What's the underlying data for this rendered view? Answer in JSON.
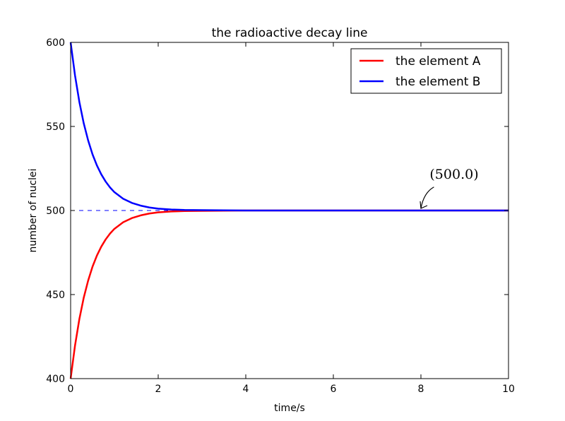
{
  "chart_data": {
    "type": "line",
    "title": "the radioactive decay line",
    "xlabel": "time/s",
    "ylabel": "number of nuclei",
    "xlim": [
      0,
      10
    ],
    "ylim": [
      400,
      600
    ],
    "xticks": [
      0,
      2,
      4,
      6,
      8,
      10
    ],
    "xtick_labels": [
      "0",
      "2",
      "4",
      "6",
      "8",
      "10"
    ],
    "yticks": [
      400,
      450,
      500,
      550,
      600
    ],
    "ytick_labels": [
      "400",
      "450",
      "500",
      "550",
      "600"
    ],
    "grid": false,
    "legend_position": "top-right",
    "series": [
      {
        "name": "the element A",
        "color": "#ff0000",
        "x": [
          0,
          0.1,
          0.2,
          0.3,
          0.4,
          0.5,
          0.6,
          0.7,
          0.8,
          0.9,
          1.0,
          1.2,
          1.4,
          1.6,
          1.8,
          2.0,
          2.3,
          2.6,
          3.0,
          3.5,
          4.0,
          5.0,
          6.0,
          7.0,
          8.0,
          9.0,
          10.0
        ],
        "y": [
          400,
          419.6,
          435.5,
          448.2,
          458.3,
          466.6,
          473.2,
          478.5,
          482.8,
          486.3,
          489.1,
          493.0,
          495.5,
          497.1,
          498.2,
          498.9,
          499.4,
          499.7,
          499.8,
          499.9,
          500.0,
          500.0,
          500.0,
          500.0,
          500.0,
          500.0,
          500.0
        ]
      },
      {
        "name": "the element B",
        "color": "#0000ff",
        "x": [
          0,
          0.1,
          0.2,
          0.3,
          0.4,
          0.5,
          0.6,
          0.7,
          0.8,
          0.9,
          1.0,
          1.2,
          1.4,
          1.6,
          1.8,
          2.0,
          2.3,
          2.6,
          3.0,
          3.5,
          4.0,
          5.0,
          6.0,
          7.0,
          8.0,
          9.0,
          10.0
        ],
        "y": [
          600,
          580.4,
          564.5,
          551.8,
          541.7,
          533.4,
          526.8,
          521.5,
          517.2,
          513.7,
          510.9,
          507.0,
          504.5,
          502.9,
          501.8,
          501.1,
          500.6,
          500.3,
          500.2,
          500.1,
          500.0,
          500.0,
          500.0,
          500.0,
          500.0,
          500.0,
          500.0
        ]
      }
    ],
    "reference_line": {
      "y": 500,
      "style": "dashed",
      "color": "#0000ff"
    },
    "annotation": {
      "text": "(500.0)",
      "point": [
        8,
        500
      ],
      "text_at": [
        8.2,
        519
      ]
    }
  }
}
